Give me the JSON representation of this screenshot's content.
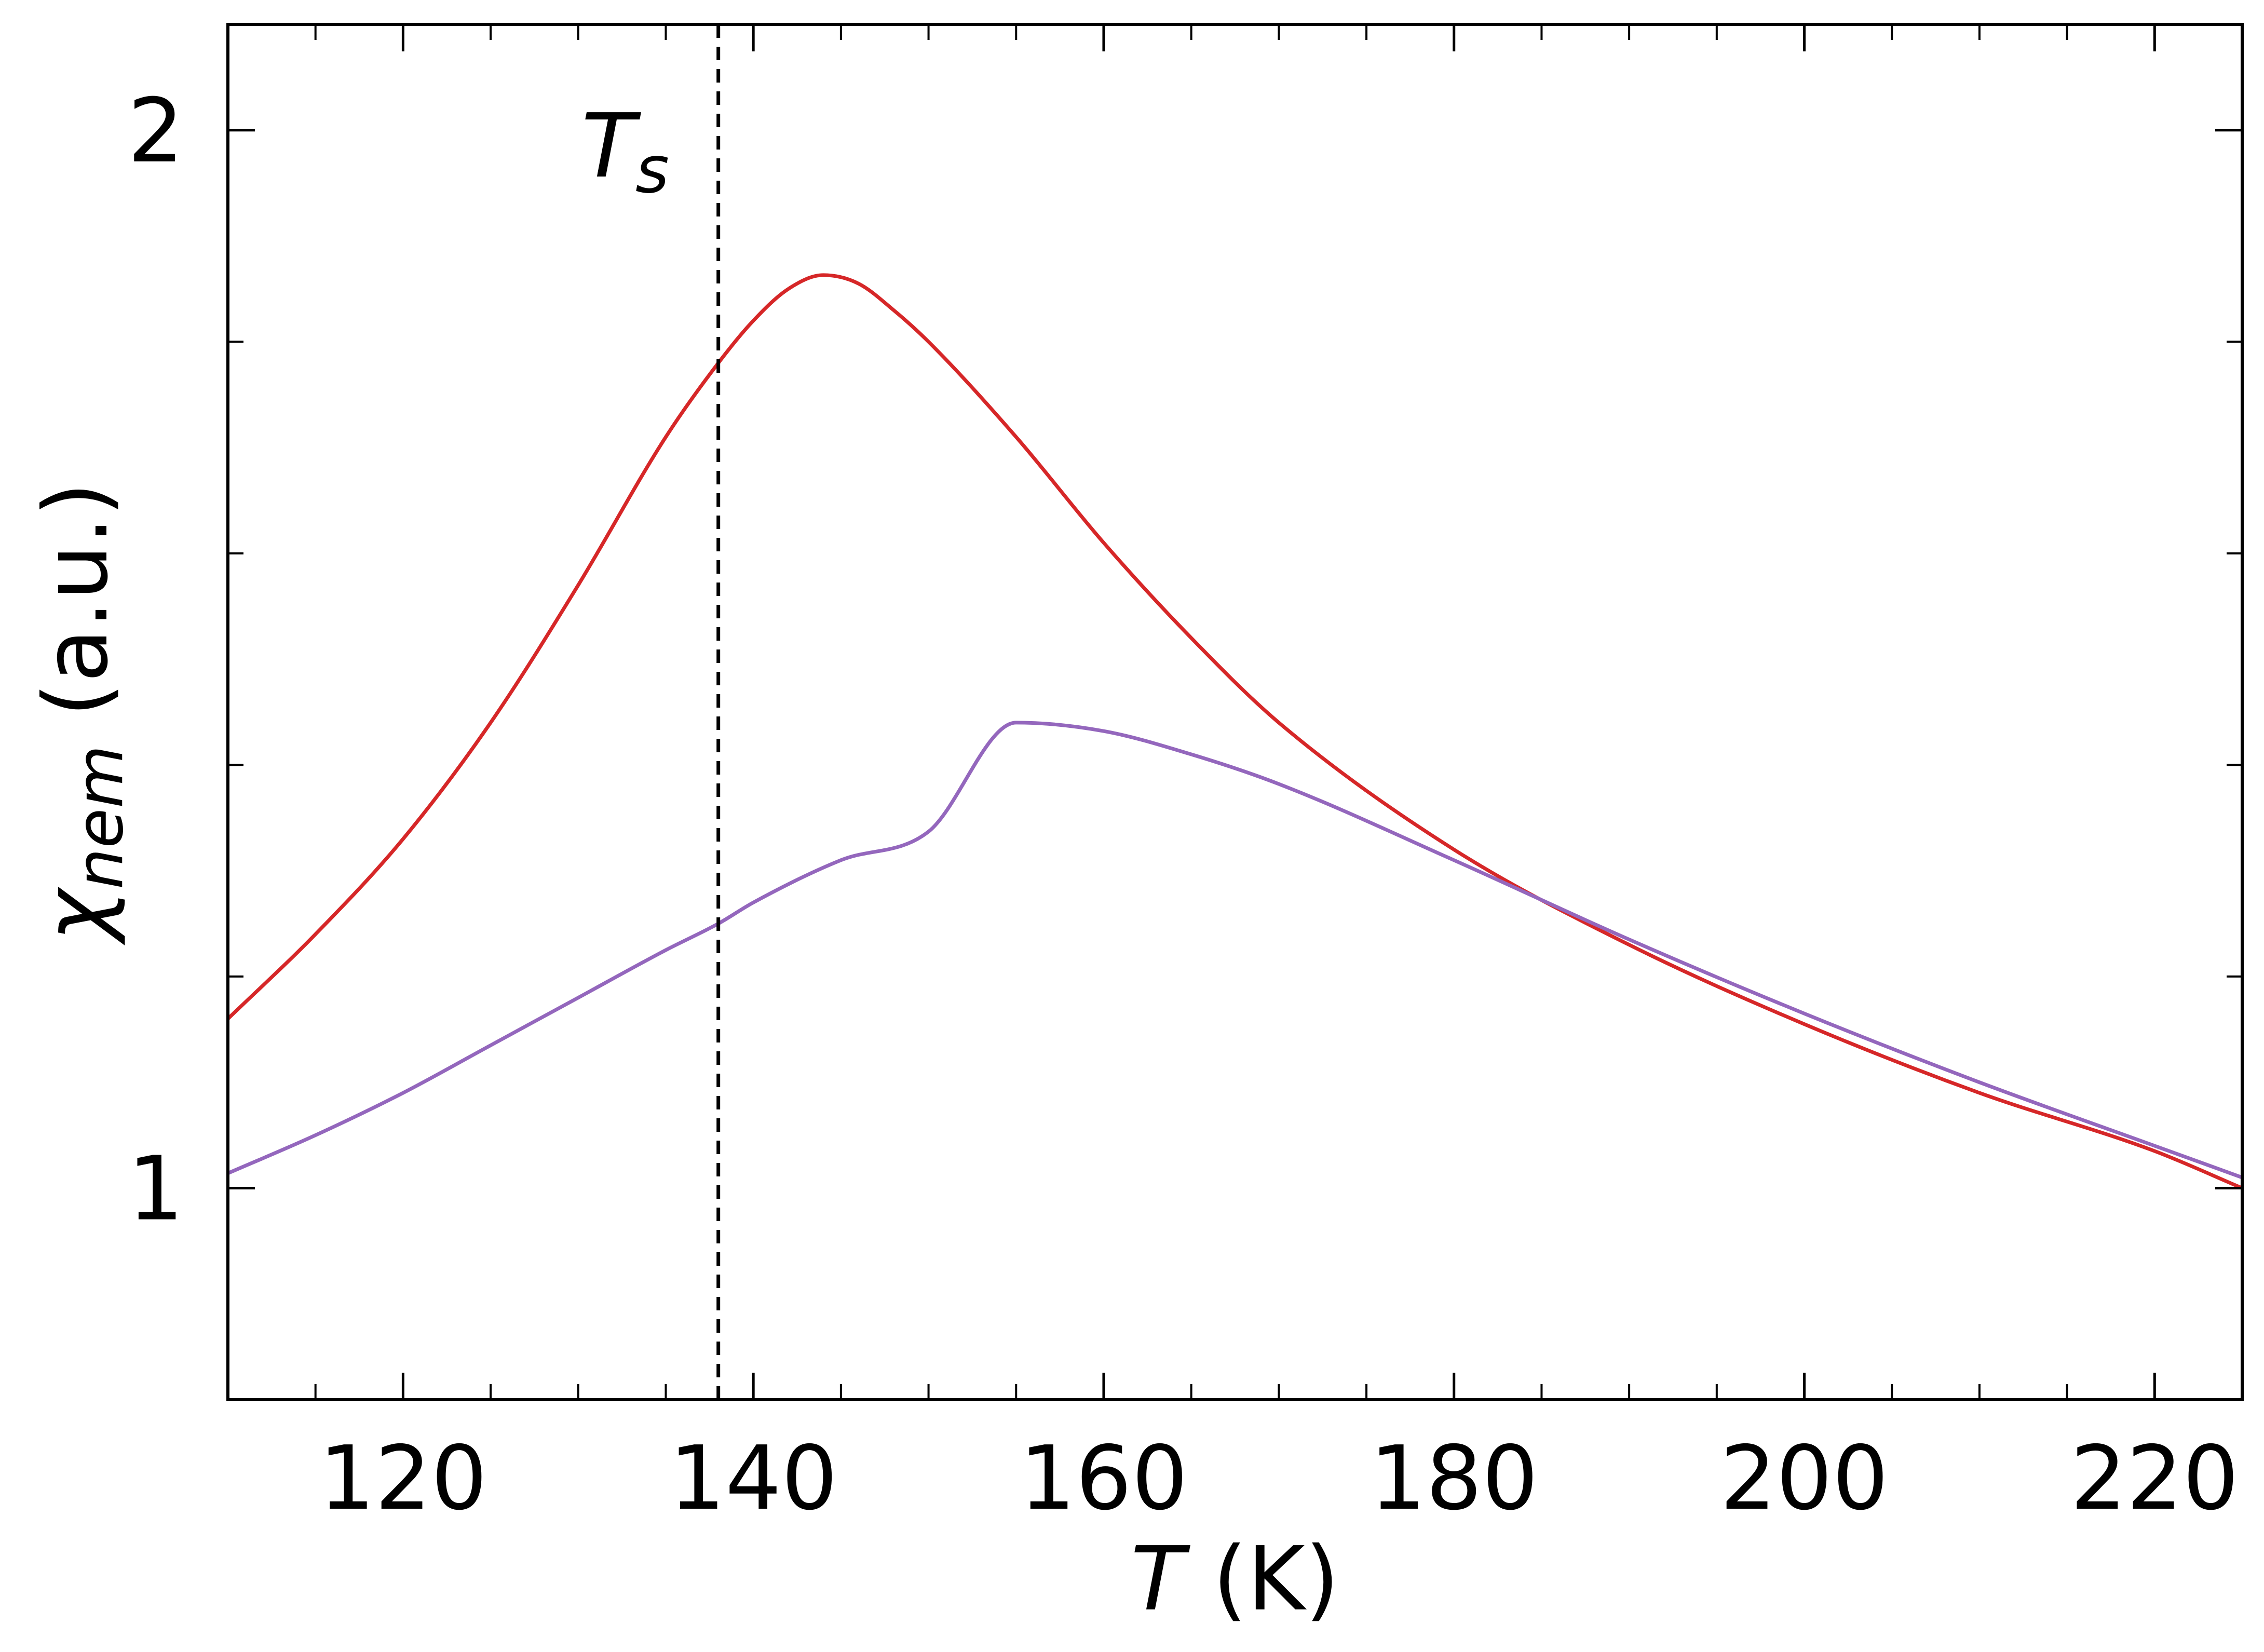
{
  "chart_data": {
    "type": "line",
    "title": "",
    "xlabel": {
      "symbol": "T",
      "unit": " (K)"
    },
    "ylabel": {
      "symbol": "χ",
      "subscript": "nem",
      "unit": " (a.u.)"
    },
    "xlim": [
      110,
      225
    ],
    "ylim": [
      0.8,
      2.1
    ],
    "x_major_ticks": [
      120,
      140,
      160,
      180,
      200,
      220
    ],
    "x_tick_labels": [
      "120",
      "140",
      "160",
      "180",
      "200",
      "220"
    ],
    "x_minor_ticks": [
      115,
      125,
      130,
      135,
      145,
      150,
      155,
      165,
      170,
      175,
      185,
      190,
      195,
      205,
      210,
      215
    ],
    "y_major_ticks": [
      1,
      2
    ],
    "y_tick_labels": [
      "1",
      "2"
    ],
    "y_minor_ticks": [
      1.2,
      1.4,
      1.6,
      1.8
    ],
    "grid": false,
    "vline": {
      "x": 138,
      "style": "dashed",
      "color": "#000000",
      "label": "T",
      "label_subscript": "s"
    },
    "series": [
      {
        "color": "#d62728",
        "x": [
          110,
          115,
          120,
          125,
          130,
          135,
          138,
          140,
          142,
          144,
          146,
          148,
          150,
          155,
          160,
          165,
          170,
          180,
          190,
          200,
          210,
          220,
          225
        ],
        "y": [
          1.16,
          1.24,
          1.33,
          1.44,
          1.57,
          1.71,
          1.78,
          1.82,
          1.85,
          1.863,
          1.855,
          1.83,
          1.8,
          1.71,
          1.61,
          1.52,
          1.44,
          1.32,
          1.23,
          1.155,
          1.09,
          1.035,
          1.0
        ]
      },
      {
        "color": "#9467bd",
        "x": [
          110,
          115,
          120,
          125,
          130,
          135,
          138,
          140,
          145,
          150,
          155,
          160,
          165,
          170,
          180,
          190,
          200,
          210,
          220,
          225
        ],
        "y": [
          1.014,
          1.05,
          1.09,
          1.135,
          1.18,
          1.225,
          1.25,
          1.27,
          1.31,
          1.337,
          1.44,
          1.432,
          1.41,
          1.382,
          1.31,
          1.235,
          1.165,
          1.1,
          1.04,
          1.01
        ]
      }
    ]
  }
}
